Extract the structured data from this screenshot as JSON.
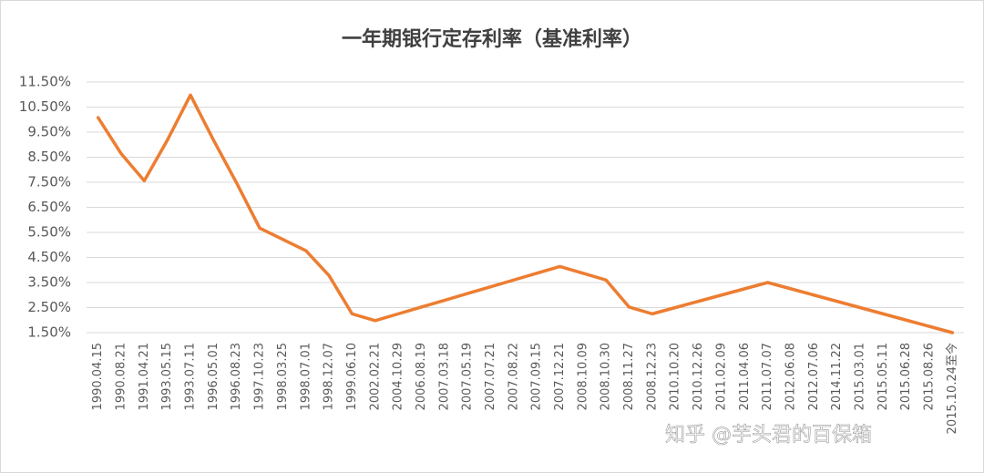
{
  "chart_data": {
    "type": "line",
    "title": "一年期银行定存利率（基准利率）",
    "annotation": "知乎 @芋头君的百保箱",
    "categories": [
      "1990.04.15",
      "1990.08.21",
      "1991.04.21",
      "1993.05.15",
      "1993.07.11",
      "1996.05.01",
      "1996.08.23",
      "1997.10.23",
      "1998.03.25",
      "1998.07.01",
      "1998.12.07",
      "1999.06.10",
      "2002.02.21",
      "2004.10.29",
      "2006.08.19",
      "2007.03.18",
      "2007.05.19",
      "2007.07.21",
      "2007.08.22",
      "2007.09.15",
      "2007.12.21",
      "2008.10.09",
      "2008.10.30",
      "2008.11.27",
      "2008.12.23",
      "2010.10.20",
      "2010.12.26",
      "2011.02.09",
      "2011.04.06",
      "2011.07.07",
      "2012.06.08",
      "2012.07.06",
      "2014.11.22",
      "2015.03.01",
      "2015.05.11",
      "2015.06.28",
      "2015.08.26",
      "2015.10.24至今"
    ],
    "values": [
      10.08,
      8.64,
      7.56,
      9.18,
      10.98,
      9.18,
      7.47,
      5.67,
      5.22,
      4.77,
      3.78,
      2.25,
      1.98,
      2.25,
      2.52,
      2.79,
      3.06,
      3.33,
      3.6,
      3.87,
      4.14,
      3.87,
      3.6,
      2.52,
      2.25,
      2.5,
      2.75,
      3.0,
      3.25,
      3.5,
      3.25,
      3.0,
      2.75,
      2.5,
      2.25,
      2.0,
      1.75,
      1.5
    ],
    "color": "#ed7d31",
    "ylim": [
      1.5,
      11.5
    ],
    "yticks": [
      {
        "value": 1.5,
        "label": "1.50%"
      },
      {
        "value": 2.5,
        "label": "2.50%"
      },
      {
        "value": 3.5,
        "label": "3.50%"
      },
      {
        "value": 4.5,
        "label": "4.50%"
      },
      {
        "value": 5.5,
        "label": "5.50%"
      },
      {
        "value": 6.5,
        "label": "6.50%"
      },
      {
        "value": 7.5,
        "label": "7.50%"
      },
      {
        "value": 8.5,
        "label": "8.50%"
      },
      {
        "value": 9.5,
        "label": "9.50%"
      },
      {
        "value": 10.5,
        "label": "10.50%"
      },
      {
        "value": 11.5,
        "label": "11.50%"
      }
    ],
    "grid": true
  }
}
